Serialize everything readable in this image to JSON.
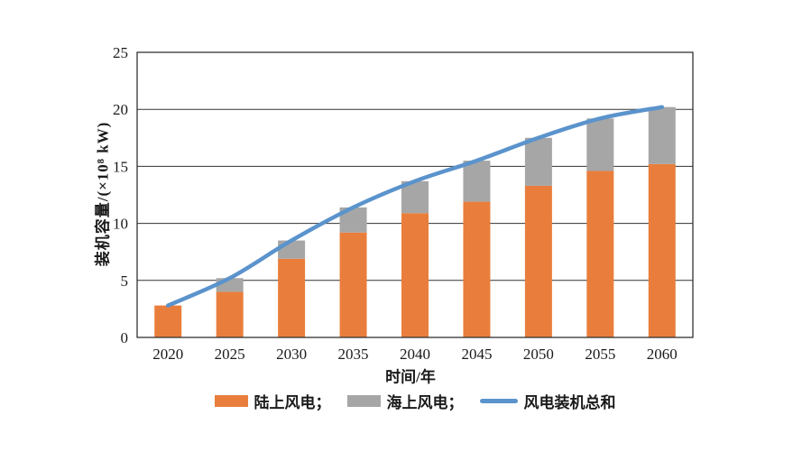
{
  "figure": {
    "background": "#ffffff",
    "text_color": "#1a1a1a",
    "axis_color": "#333333"
  },
  "chart_data": {
    "type": "bar",
    "subtype": "stacked-bar-with-line",
    "title": "",
    "xlabel": "时间/年",
    "ylabel": "装机容量/(×10⁸ kW)",
    "categories": [
      "2020",
      "2025",
      "2030",
      "2035",
      "2040",
      "2045",
      "2050",
      "2055",
      "2060"
    ],
    "y_ticks": [
      0,
      5,
      10,
      15,
      20,
      25
    ],
    "ylim": [
      0,
      25
    ],
    "grid": "horizontal",
    "legend_position": "bottom",
    "series": [
      {
        "name": "陆上风电",
        "type": "bar",
        "stack": "wind",
        "color": "#E97E3C",
        "values": [
          2.8,
          4.0,
          6.9,
          9.2,
          10.9,
          11.9,
          13.3,
          14.6,
          15.2
        ]
      },
      {
        "name": "海上风电",
        "type": "bar",
        "stack": "wind",
        "color": "#A6A6A6",
        "values": [
          0.0,
          1.2,
          1.6,
          2.2,
          2.8,
          3.6,
          4.2,
          4.6,
          5.0
        ]
      },
      {
        "name": "风电装机总和",
        "type": "line",
        "color": "#5B93CC",
        "values": [
          2.8,
          5.2,
          8.5,
          11.4,
          13.7,
          15.5,
          17.5,
          19.2,
          20.2
        ]
      }
    ],
    "legend": {
      "items": [
        {
          "label": "陆上风电；",
          "swatch": "bar",
          "color": "#E97E3C"
        },
        {
          "label": "海上风电；",
          "swatch": "bar",
          "color": "#A6A6A6"
        },
        {
          "label": "风电装机总和",
          "swatch": "line",
          "color": "#5B93CC"
        }
      ]
    }
  }
}
